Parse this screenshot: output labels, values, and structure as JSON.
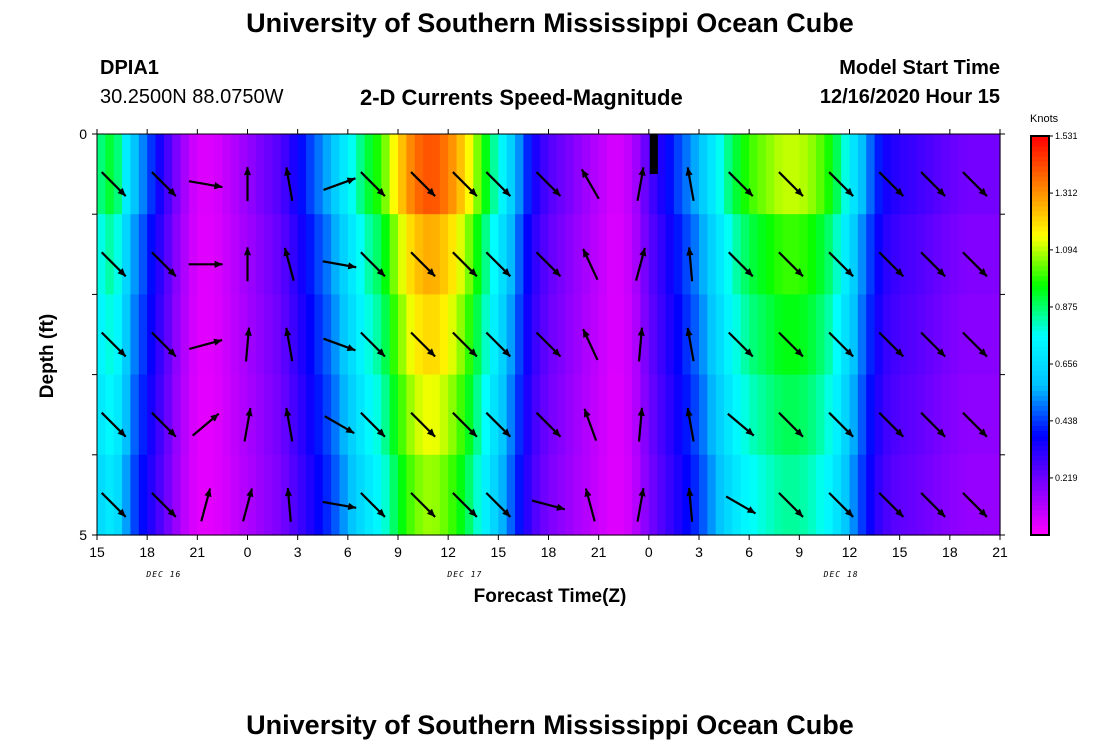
{
  "title_top": "University of Southern Mississippi Ocean Cube",
  "title_bottom": "University of Southern Mississippi Ocean Cube",
  "station": {
    "id": "DPIA1",
    "coords": "30.2500N 88.0750W"
  },
  "subtitle": "2-D Currents Speed-Magnitude",
  "model_start": {
    "label": "Model Start Time",
    "value": "12/16/2020 Hour 15"
  },
  "colorbar": {
    "unit": "Knots",
    "ticks": [
      "1.531",
      "1.312",
      "1.094",
      "0.875",
      "0.656",
      "0.438",
      "0.219"
    ],
    "colors": [
      "#ff00ff",
      "#8000ff",
      "#0000ff",
      "#00c0ff",
      "#00ffff",
      "#00ff00",
      "#ffff00",
      "#ff8000",
      "#ff0000"
    ]
  },
  "chart_data": {
    "type": "heatmap",
    "title": "2-D Currents Speed-Magnitude",
    "xlabel": "Forecast Time(Z)",
    "ylabel": "Depth (ft)",
    "x_hours": [
      15,
      18,
      21,
      24,
      27,
      30,
      33,
      36,
      39,
      42,
      45,
      48,
      51,
      54,
      57,
      60,
      63,
      66,
      69
    ],
    "xlim": [
      15,
      69
    ],
    "ylim": [
      0,
      5
    ],
    "depth_bins": [
      0.5,
      1.5,
      2.5,
      3.5,
      4.5
    ],
    "x_tick_labels": [
      "15",
      "18",
      "21",
      "0",
      "3",
      "6",
      "9",
      "12",
      "15",
      "18",
      "21",
      "0",
      "3",
      "6",
      "9",
      "12",
      "15",
      "18",
      "21"
    ],
    "y_tick_labels": [
      "0",
      "",
      "",
      "",
      "",
      "5"
    ],
    "date_labels": [
      {
        "hour": 19,
        "text": "DEC 16"
      },
      {
        "hour": 37,
        "text": "DEC 17"
      },
      {
        "hour": 59.5,
        "text": "DEC 18"
      }
    ],
    "speed_range": [
      0,
      1.531
    ],
    "speed_profile": [
      [
        15,
        0.8
      ],
      [
        16,
        0.9
      ],
      [
        17,
        0.6
      ],
      [
        18,
        0.45
      ],
      [
        19,
        0.3
      ],
      [
        20,
        0.15
      ],
      [
        21,
        0.05
      ],
      [
        22,
        0.05
      ],
      [
        23,
        0.1
      ],
      [
        24,
        0.15
      ],
      [
        25,
        0.2
      ],
      [
        26,
        0.25
      ],
      [
        27,
        0.35
      ],
      [
        28,
        0.45
      ],
      [
        29,
        0.55
      ],
      [
        30,
        0.7
      ],
      [
        31,
        0.85
      ],
      [
        32,
        0.95
      ],
      [
        33,
        1.15
      ],
      [
        34,
        1.3
      ],
      [
        35,
        1.35
      ],
      [
        36,
        1.28
      ],
      [
        37,
        1.15
      ],
      [
        38,
        0.95
      ],
      [
        39,
        0.75
      ],
      [
        40,
        0.55
      ],
      [
        41,
        0.35
      ],
      [
        42,
        0.25
      ],
      [
        43,
        0.2
      ],
      [
        44,
        0.15
      ],
      [
        45,
        0.1
      ],
      [
        46,
        0.05
      ],
      [
        47,
        0.1
      ],
      [
        48,
        0.25
      ],
      [
        49,
        0.35
      ],
      [
        50,
        0.45
      ],
      [
        51,
        0.55
      ],
      [
        52,
        0.7
      ],
      [
        53,
        0.85
      ],
      [
        54,
        0.95
      ],
      [
        55,
        1.0
      ],
      [
        56,
        1.05
      ],
      [
        57,
        1.05
      ],
      [
        58,
        1.0
      ],
      [
        59,
        0.9
      ],
      [
        60,
        0.7
      ],
      [
        61,
        0.5
      ],
      [
        62,
        0.35
      ],
      [
        63,
        0.3
      ],
      [
        64,
        0.28
      ],
      [
        65,
        0.25
      ],
      [
        66,
        0.22
      ],
      [
        67,
        0.2
      ],
      [
        68,
        0.2
      ],
      [
        69,
        0.2
      ]
    ],
    "depth_factors": [
      1.05,
      0.95,
      0.9,
      0.85,
      0.8
    ],
    "arrows": [
      {
        "hour": 16.0,
        "angles": [
          45,
          45,
          45,
          45,
          45
        ]
      },
      {
        "hour": 19.0,
        "angles": [
          45,
          45,
          45,
          45,
          45
        ]
      },
      {
        "hour": 21.5,
        "angles": [
          10,
          0,
          -15,
          -40,
          -75
        ]
      },
      {
        "hour": 24.0,
        "angles": [
          -90,
          -90,
          -85,
          -80,
          -75
        ]
      },
      {
        "hour": 26.5,
        "angles": [
          -100,
          -105,
          -100,
          -100,
          -95
        ]
      },
      {
        "hour": 29.5,
        "angles": [
          -20,
          10,
          20,
          30,
          10
        ]
      },
      {
        "hour": 31.5,
        "angles": [
          45,
          45,
          45,
          45,
          45
        ]
      },
      {
        "hour": 34.5,
        "angles": [
          45,
          45,
          45,
          45,
          45
        ]
      },
      {
        "hour": 37.0,
        "angles": [
          45,
          45,
          45,
          45,
          45
        ]
      },
      {
        "hour": 39.0,
        "angles": [
          45,
          45,
          45,
          45,
          45
        ]
      },
      {
        "hour": 42.0,
        "angles": [
          45,
          45,
          45,
          45,
          15
        ]
      },
      {
        "hour": 44.5,
        "angles": [
          -120,
          -115,
          -115,
          -110,
          -105
        ]
      },
      {
        "hour": 47.5,
        "angles": [
          -80,
          -75,
          -85,
          -85,
          -80
        ]
      },
      {
        "hour": 50.5,
        "angles": [
          -100,
          -95,
          -100,
          -100,
          -95
        ]
      },
      {
        "hour": 53.5,
        "angles": [
          45,
          45,
          45,
          40,
          30
        ]
      },
      {
        "hour": 56.5,
        "angles": [
          45,
          45,
          45,
          45,
          45
        ]
      },
      {
        "hour": 59.5,
        "angles": [
          45,
          45,
          45,
          45,
          45
        ]
      },
      {
        "hour": 62.5,
        "angles": [
          45,
          45,
          45,
          45,
          45
        ]
      },
      {
        "hour": 65.0,
        "angles": [
          45,
          45,
          45,
          45,
          45
        ]
      },
      {
        "hour": 67.5,
        "angles": [
          45,
          45,
          45,
          45,
          45
        ]
      }
    ],
    "marker_hour": 48.3
  }
}
